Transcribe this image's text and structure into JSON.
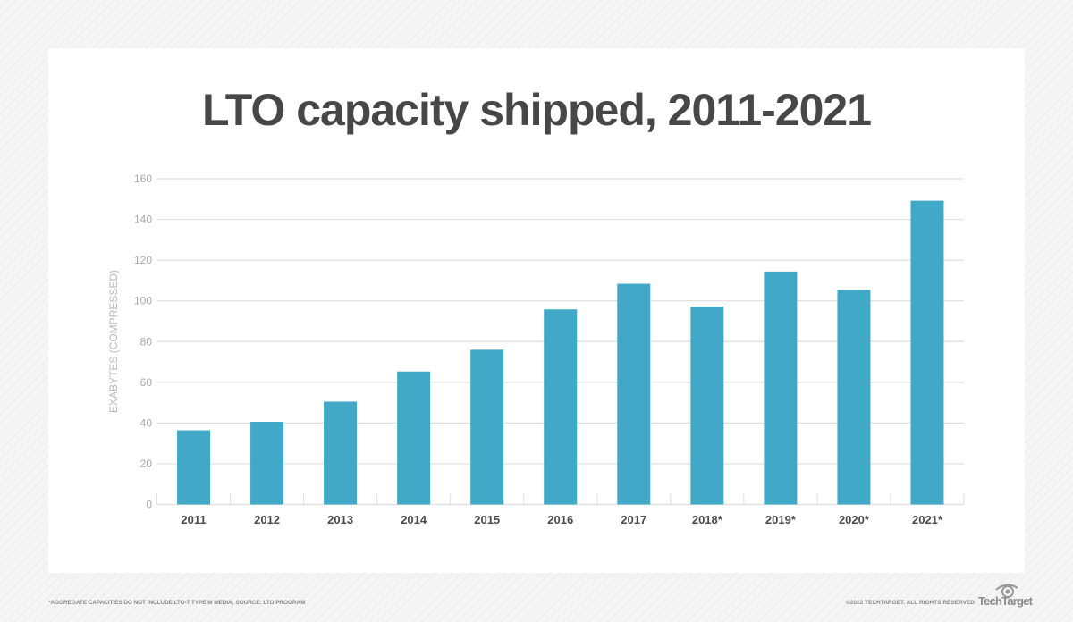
{
  "chart_data": {
    "type": "bar",
    "title": "LTO capacity shipped, 2011-2021",
    "xlabel": "",
    "ylabel": "EXABYTES (COMPRESSED)",
    "categories": [
      "2011",
      "2012",
      "2013",
      "2014",
      "2015",
      "2016",
      "2017",
      "2018*",
      "2019*",
      "2020*",
      "2021*"
    ],
    "values": [
      36.4,
      40.6,
      50.5,
      65.3,
      76,
      95.8,
      108.4,
      97.2,
      114.4,
      105.4,
      149.2
    ],
    "ylim": [
      0,
      160
    ],
    "yticks": [
      0,
      20,
      40,
      60,
      80,
      100,
      120,
      140,
      160
    ],
    "grid": true,
    "legend": "none",
    "bar_color": "#41a9c7"
  },
  "footer": {
    "note": "*AGGREGATE CAPACITIES DO NOT INCLUDE LTO-7 TYPE M MEDIA; SOURCE: LTO PROGRAM",
    "copyright": "©2022 TECHTARGET. ALL RIGHTS RESERVED",
    "logo": "TechTarget"
  }
}
